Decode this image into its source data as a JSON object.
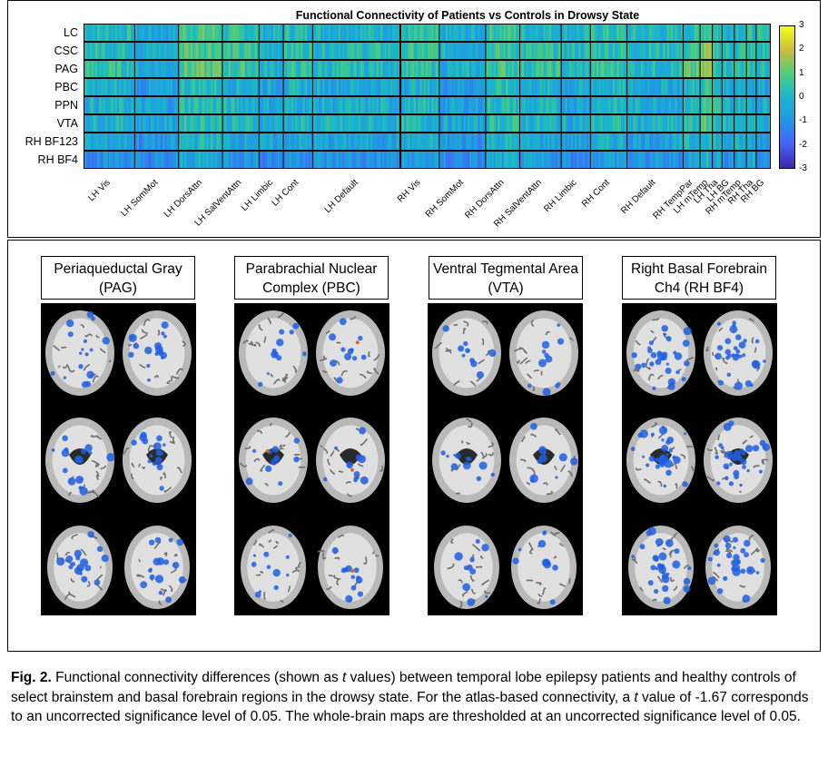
{
  "figure": {
    "heatmap": {
      "title": "Functional Connectivity of Patients vs Controls in Drowsy State"
    },
    "panels": [
      {
        "line1": "Periaqueductal Gray",
        "line2": "(PAG)"
      },
      {
        "line1": "Parabrachial Nuclear",
        "line2": "Complex (PBC)"
      },
      {
        "line1": "Ventral Tegmental Area",
        "line2": "(VTA)"
      },
      {
        "line1": "Right Basal Forebrain",
        "line2": "Ch4 (RH BF4)"
      }
    ],
    "caption": {
      "label": "Fig. 2.",
      "text_before_t": " Functional connectivity differences (shown as ",
      "t": "t",
      "text_mid": " values) between temporal lobe epilepsy patients and healthy controls of select brainstem and basal forebrain regions in the drowsy state. For the atlas-based connectivity, a ",
      "t2": "t",
      "text_after": " value of -1.67 corresponds to an uncorrected significance level of 0.05. The whole-brain maps are thresholded at an uncorrected significance level of 0.05."
    },
    "colors": {
      "heat_low": "#3e26a8",
      "heat_mid": "#1fa8d8",
      "heat_high": "#f9fb15",
      "overlay_blue": "#1f5fe0",
      "overlay_orange": "#d86a1a"
    }
  },
  "chart_data": {
    "type": "heatmap",
    "title": "Functional Connectivity of Patients vs Controls in Drowsy State",
    "rows": [
      "LC",
      "CSC",
      "PAG",
      "PBC",
      "PPN",
      "VTA",
      "RH BF123",
      "RH BF4"
    ],
    "column_groups": [
      "LH Vis",
      "LH SomMot",
      "LH DorsAttn",
      "LH SalVentAttn",
      "LH Limbic",
      "LH Cont",
      "LH Default",
      "RH Vis",
      "RH SomMot",
      "RH DorsAttn",
      "RH SalVentAttn",
      "RH Limbic",
      "RH Cont",
      "RH Default",
      "RH TempPar",
      "LH mTemp",
      "LH Tha",
      "LH BG",
      "RH mTemp",
      "RH Tha",
      "RH BG"
    ],
    "colorbar": {
      "min": -3,
      "max": 3,
      "ticks": [
        "3",
        "2",
        "1",
        "0",
        "-1",
        "-2",
        "-3"
      ]
    },
    "group_row_means": {
      "LC": [
        0.1,
        -0.5,
        0.8,
        0.3,
        -0.2,
        0.2,
        0.0,
        0.2,
        -0.4,
        0.6,
        0.1,
        -0.1,
        0.3,
        0.0,
        0.2,
        0.9,
        0.4,
        0.1,
        0.3,
        0.2,
        0.0
      ],
      "CSC": [
        0.3,
        -0.2,
        1.0,
        0.5,
        0.0,
        0.4,
        0.2,
        0.4,
        -0.2,
        0.5,
        0.3,
        0.1,
        0.4,
        0.2,
        0.5,
        1.2,
        0.6,
        0.2,
        0.4,
        0.3,
        0.2
      ],
      "PAG": [
        0.4,
        -0.4,
        0.9,
        0.6,
        -0.1,
        0.3,
        0.1,
        0.3,
        -0.3,
        0.7,
        0.4,
        0.0,
        0.5,
        0.1,
        0.8,
        1.4,
        0.7,
        0.3,
        0.5,
        0.4,
        0.1
      ],
      "PBC": [
        -0.3,
        -0.8,
        0.2,
        -0.2,
        -0.5,
        -0.3,
        -0.4,
        -0.2,
        -0.7,
        0.1,
        -0.3,
        -0.5,
        -0.1,
        -0.4,
        0.0,
        0.5,
        0.1,
        -0.3,
        -0.1,
        -0.2,
        -0.4
      ],
      "PPN": [
        -0.2,
        -0.6,
        0.3,
        -0.1,
        -0.4,
        -0.2,
        -0.3,
        -0.1,
        -0.6,
        0.2,
        -0.2,
        -0.4,
        0.0,
        -0.3,
        0.1,
        0.6,
        0.2,
        -0.2,
        0.0,
        -0.1,
        -0.3
      ],
      "VTA": [
        -0.1,
        -0.5,
        0.4,
        0.0,
        -0.3,
        -0.1,
        -0.2,
        0.0,
        -0.5,
        0.3,
        -0.1,
        -0.3,
        0.1,
        -0.2,
        0.2,
        0.7,
        0.3,
        -0.1,
        0.1,
        0.0,
        -0.2
      ],
      "RH BF123": [
        -0.5,
        -1.0,
        0.0,
        -0.4,
        -0.7,
        -0.5,
        -0.6,
        -0.4,
        -0.9,
        -0.1,
        -0.5,
        -0.7,
        -0.3,
        -0.6,
        -0.2,
        0.3,
        -0.1,
        -0.5,
        -0.3,
        -0.4,
        -0.6
      ],
      "RH BF4": [
        -0.9,
        -1.3,
        -0.4,
        -0.8,
        -1.1,
        -0.9,
        -1.0,
        -0.8,
        -1.2,
        -0.5,
        -0.9,
        -1.1,
        -0.7,
        -1.0,
        -0.6,
        0.0,
        -0.4,
        -0.8,
        -0.6,
        -0.7,
        -0.9
      ]
    }
  }
}
